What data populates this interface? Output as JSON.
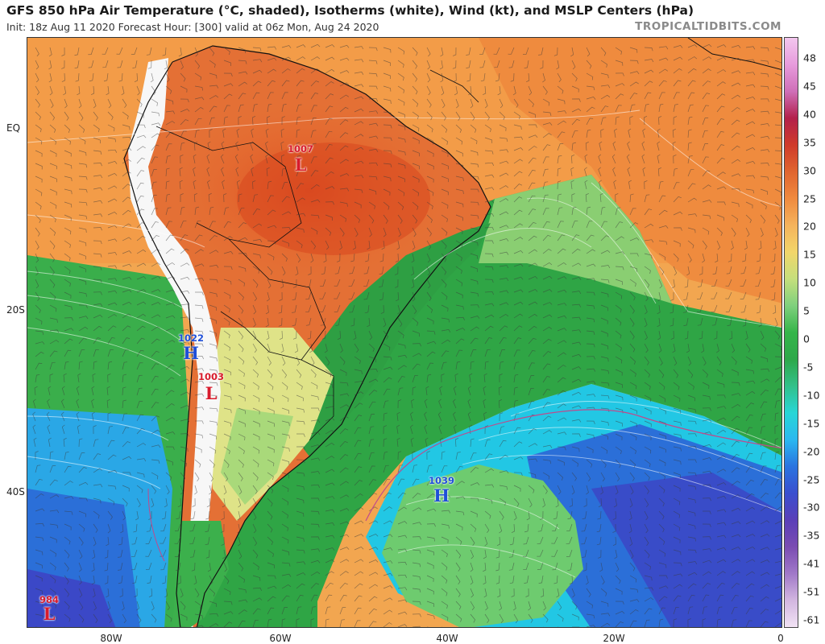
{
  "header": {
    "title": "GFS 850 hPa Air Temperature (°C, shaded), Isotherms (white), Wind (kt), and MSLP Centers (hPa)",
    "subtitle": "Init: 18z Aug 11 2020   Forecast Hour: [300]   valid at 06z Mon, Aug 24 2020",
    "brand": "TROPICALTIDBITS.COM"
  },
  "map": {
    "lat_labels": [
      "EQ",
      "20S",
      "40S"
    ],
    "lon_labels": [
      "80W",
      "60W",
      "40W",
      "20W",
      "0"
    ],
    "pressure_centers": [
      {
        "kind": "L",
        "value": "1007",
        "color": "#d81b2c"
      },
      {
        "kind": "H",
        "value": "1022",
        "color": "#1f4fd8"
      },
      {
        "kind": "L",
        "value": "1003",
        "color": "#d81b2c"
      },
      {
        "kind": "H",
        "value": "1039",
        "color": "#1f4fd8"
      },
      {
        "kind": "L",
        "value": "984",
        "color": "#d81b2c"
      }
    ]
  },
  "colorbar": {
    "ticks": [
      "48",
      "45",
      "40",
      "35",
      "30",
      "25",
      "20",
      "15",
      "10",
      "5",
      "0",
      "-5",
      "-10",
      "-15",
      "-20",
      "-25",
      "-30",
      "-35",
      "-41",
      "-51",
      "-61"
    ],
    "stops": [
      "#f3c7ee",
      "#e79bdc",
      "#cf6fb8",
      "#b3204b",
      "#cf3b2b",
      "#e0652f",
      "#f08a3e",
      "#f5b35c",
      "#f2d66a",
      "#c5df7c",
      "#7fd07d",
      "#35b54a",
      "#2ea84a",
      "#32c08a",
      "#28d6d6",
      "#2bb8f0",
      "#2b74e0",
      "#3a4fcf",
      "#5a3fb8",
      "#7a4cb2",
      "#a078c8",
      "#d2b6e0",
      "#f1e2f4"
    ]
  },
  "colors": {
    "hot": "#e2592b",
    "warm": "#f19a4a",
    "mild": "#f5bc5e",
    "cool_green": "#45b24f",
    "deep_green": "#2a9a3f",
    "light_green": "#6fcf73",
    "cyan": "#22c9e6",
    "blue": "#2b6fd8",
    "indigo": "#3b48c7",
    "land_outline": "#111111"
  }
}
